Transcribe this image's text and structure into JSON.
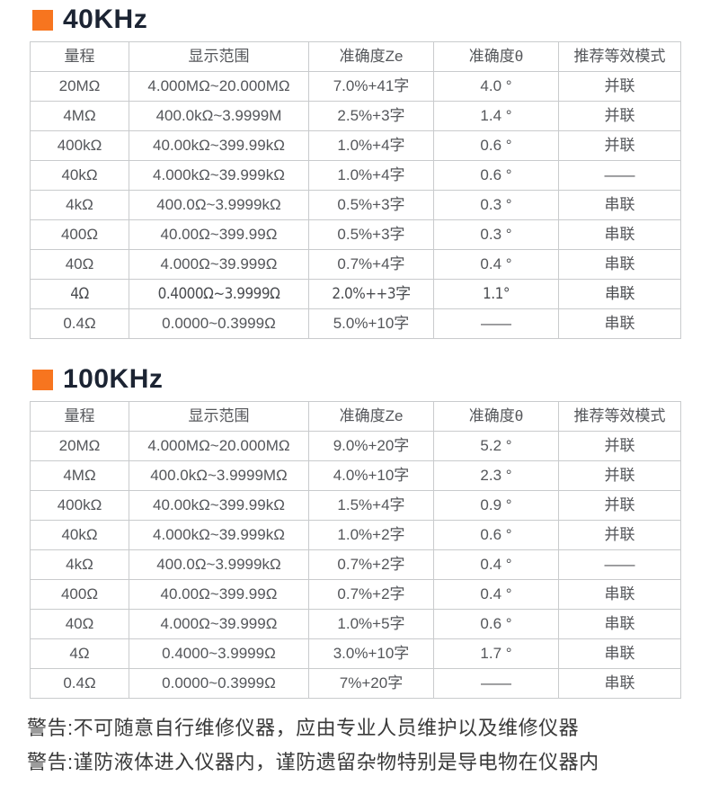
{
  "accent_color": "#f7751f",
  "heading_color": "#1c2433",
  "sections": [
    {
      "title": "40KHz",
      "columns": [
        "量程",
        "显示范围",
        "准确度Ze",
        "准确度θ",
        "推荐等效模式"
      ],
      "rows": [
        [
          "20MΩ",
          "4.000MΩ~20.000MΩ",
          "7.0%+41字",
          "4.0 °",
          "并联"
        ],
        [
          "4MΩ",
          "400.0kΩ~3.9999M",
          "2.5%+3字",
          "1.4 °",
          "并联"
        ],
        [
          "400kΩ",
          "40.00kΩ~399.99kΩ",
          "1.0%+4字",
          "0.6 °",
          "并联"
        ],
        [
          "40kΩ",
          "4.000kΩ~39.999kΩ",
          "1.0%+4字",
          "0.6 °",
          "——"
        ],
        [
          "4kΩ",
          "400.0Ω~3.9999kΩ",
          "0.5%+3字",
          "0.3 °",
          "串联"
        ],
        [
          "400Ω",
          "40.00Ω~399.99Ω",
          "0.5%+3字",
          "0.3 °",
          "串联"
        ],
        [
          "40Ω",
          "4.000Ω~39.999Ω",
          "0.7%+4字",
          "0.4 °",
          "串联"
        ],
        [
          "4Ω",
          "0.4000Ω~3.9999Ω",
          "2.0%++3字",
          "1.1°",
          "串联"
        ],
        [
          "0.4Ω",
          "0.0000~0.3999Ω",
          "5.0%+10字",
          "——",
          "串联"
        ]
      ]
    },
    {
      "title": "100KHz",
      "columns": [
        "量程",
        "显示范围",
        "准确度Ze",
        "准确度θ",
        "推荐等效模式"
      ],
      "rows": [
        [
          "20MΩ",
          "4.000MΩ~20.000MΩ",
          "9.0%+20字",
          "5.2 °",
          "并联"
        ],
        [
          "4MΩ",
          "400.0kΩ~3.9999MΩ",
          "4.0%+10字",
          "2.3 °",
          "并联"
        ],
        [
          "400kΩ",
          "40.00kΩ~399.99kΩ",
          "1.5%+4字",
          "0.9 °",
          "并联"
        ],
        [
          "40kΩ",
          "4.000kΩ~39.999kΩ",
          "1.0%+2字",
          "0.6 °",
          "并联"
        ],
        [
          "4kΩ",
          "400.0Ω~3.9999kΩ",
          "0.7%+2字",
          "0.4 °",
          "——"
        ],
        [
          "400Ω",
          "40.00Ω~399.99Ω",
          "0.7%+2字",
          "0.4 °",
          "串联"
        ],
        [
          "40Ω",
          "4.000Ω~39.999Ω",
          "1.0%+5字",
          "0.6 °",
          "串联"
        ],
        [
          "4Ω",
          "0.4000~3.9999Ω",
          "3.0%+10字",
          "1.7 °",
          "串联"
        ],
        [
          "0.4Ω",
          "0.0000~0.3999Ω",
          "7%+20字",
          "——",
          "串联"
        ]
      ]
    }
  ],
  "warnings": [
    "警告:不可随意自行维修仪器，应由专业人员维护以及维修仪器",
    "警告:谨防液体进入仪器内，谨防遗留杂物特别是导电物在仪器内"
  ]
}
